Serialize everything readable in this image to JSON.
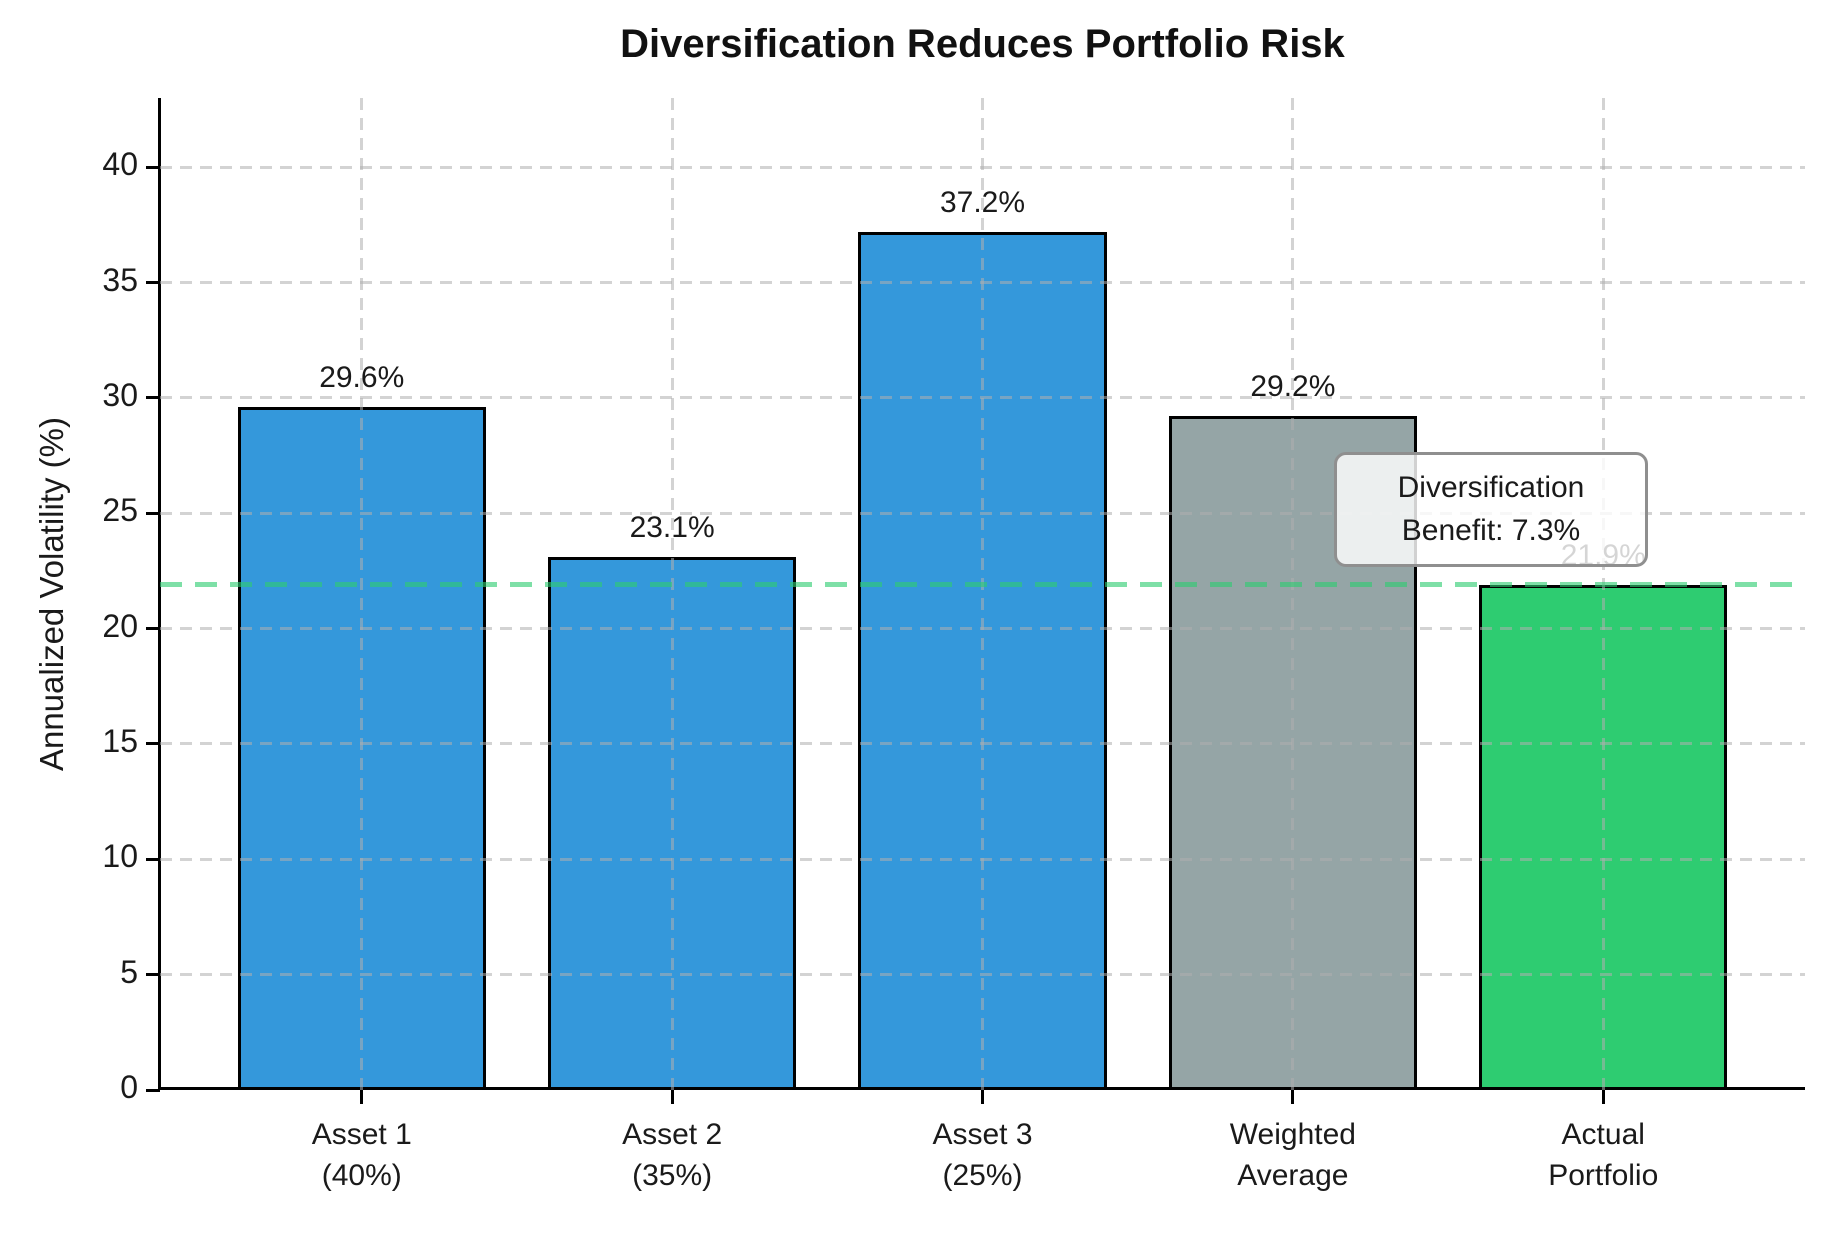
{
  "chart_data": {
    "type": "bar",
    "title": "Diversification Reduces Portfolio Risk",
    "ylabel": "Annualized Volatility (%)",
    "xlabel": "",
    "categories": [
      [
        "Asset 1",
        "(40%)"
      ],
      [
        "Asset 2",
        "(35%)"
      ],
      [
        "Asset 3",
        "(25%)"
      ],
      [
        "Weighted",
        "Average"
      ],
      [
        "Actual",
        "Portfolio"
      ]
    ],
    "values": [
      29.6,
      23.1,
      37.2,
      29.2,
      21.9
    ],
    "bar_labels": [
      "29.6%",
      "23.1%",
      "37.2%",
      "29.2%",
      "21.9%"
    ],
    "bar_colors": [
      "#3498db",
      "#3498db",
      "#3498db",
      "#95a5a6",
      "#2ecc71"
    ],
    "bar_edge_color": "#000000",
    "yticks": [
      0,
      5,
      10,
      15,
      20,
      25,
      30,
      35,
      40
    ],
    "ylim": [
      0,
      43
    ],
    "grid": "both-dashed-light-gray",
    "legend": "none",
    "reference_line": {
      "value": 21.9,
      "color": "#2ecc71",
      "style": "dashed"
    },
    "annotation": {
      "line1": "Diversification",
      "line2": "Benefit: 7.3%"
    }
  }
}
